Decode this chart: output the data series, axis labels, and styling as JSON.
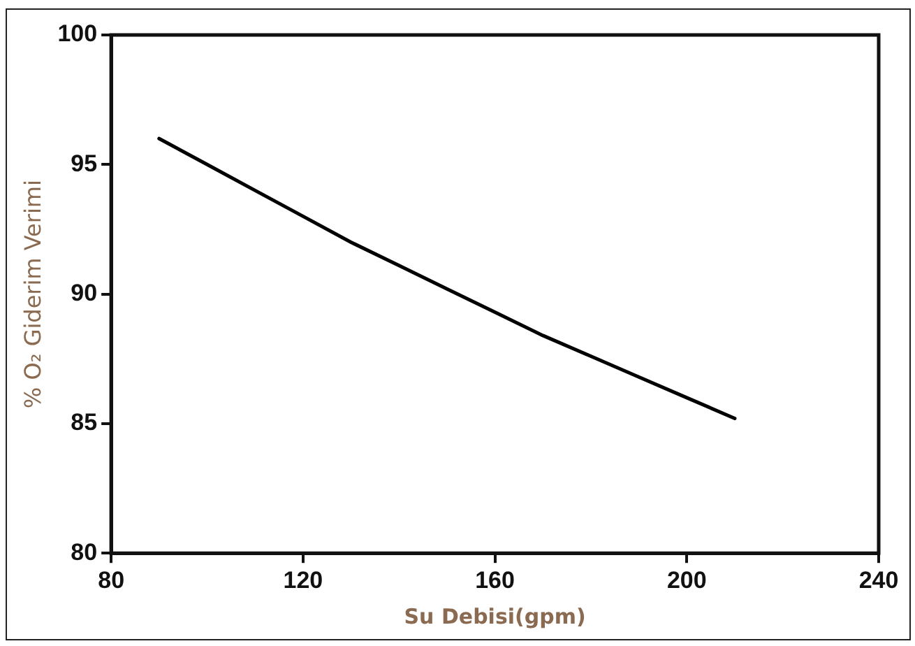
{
  "chart_data": {
    "type": "line",
    "xlabel": "Su Debisi(gpm)",
    "ylabel": "% O₂ Giderim Verimi",
    "x": [
      90,
      100,
      110,
      120,
      130,
      140,
      150,
      160,
      170,
      180,
      190,
      200,
      210
    ],
    "series": [
      {
        "color": "#000000",
        "values": [
          96.0,
          95.0,
          94.0,
          93.0,
          92.0,
          91.1,
          90.2,
          89.3,
          88.4,
          87.6,
          86.8,
          86.0,
          85.2
        ]
      }
    ],
    "xlim": [
      80,
      240
    ],
    "xticks": [
      80,
      120,
      160,
      200,
      240
    ],
    "ylim": [
      80,
      100
    ],
    "yticks": [
      80,
      85,
      90,
      95,
      100
    ],
    "grid": false,
    "legend": false,
    "marker": "none",
    "line_style": "solid"
  }
}
